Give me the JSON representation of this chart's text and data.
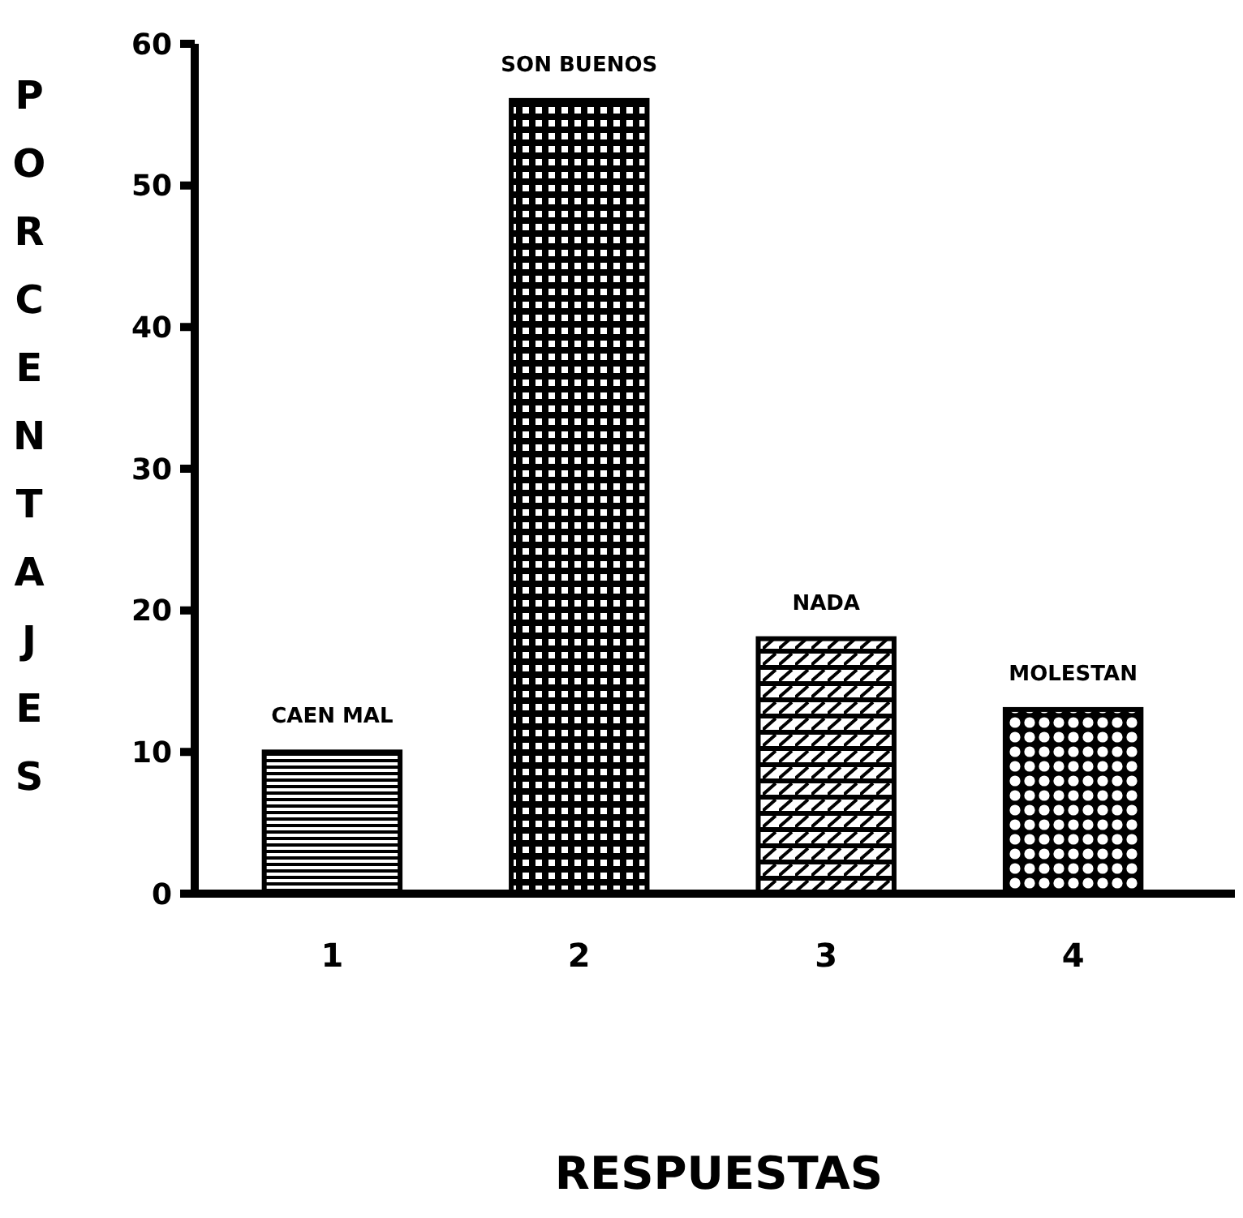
{
  "chart_data": {
    "type": "bar",
    "xlabel": "RESPUESTAS",
    "ylabel": "PORCENTAJES",
    "categories": [
      "1",
      "2",
      "3",
      "4"
    ],
    "values": [
      10,
      56,
      18,
      13
    ],
    "color": "#000000",
    "ylim": [
      0,
      60
    ],
    "yticks": [
      0,
      10,
      20,
      30,
      40,
      50,
      60
    ],
    "grid": false,
    "annotations": [
      {
        "text": "CAEN MAL",
        "x": "1",
        "y": 10
      },
      {
        "text": "SON BUENOS",
        "x": "2",
        "y": 56
      },
      {
        "text": "NADA",
        "x": "3",
        "y": 18
      },
      {
        "text": "MOLESTAN",
        "x": "4",
        "y": 13
      }
    ]
  }
}
